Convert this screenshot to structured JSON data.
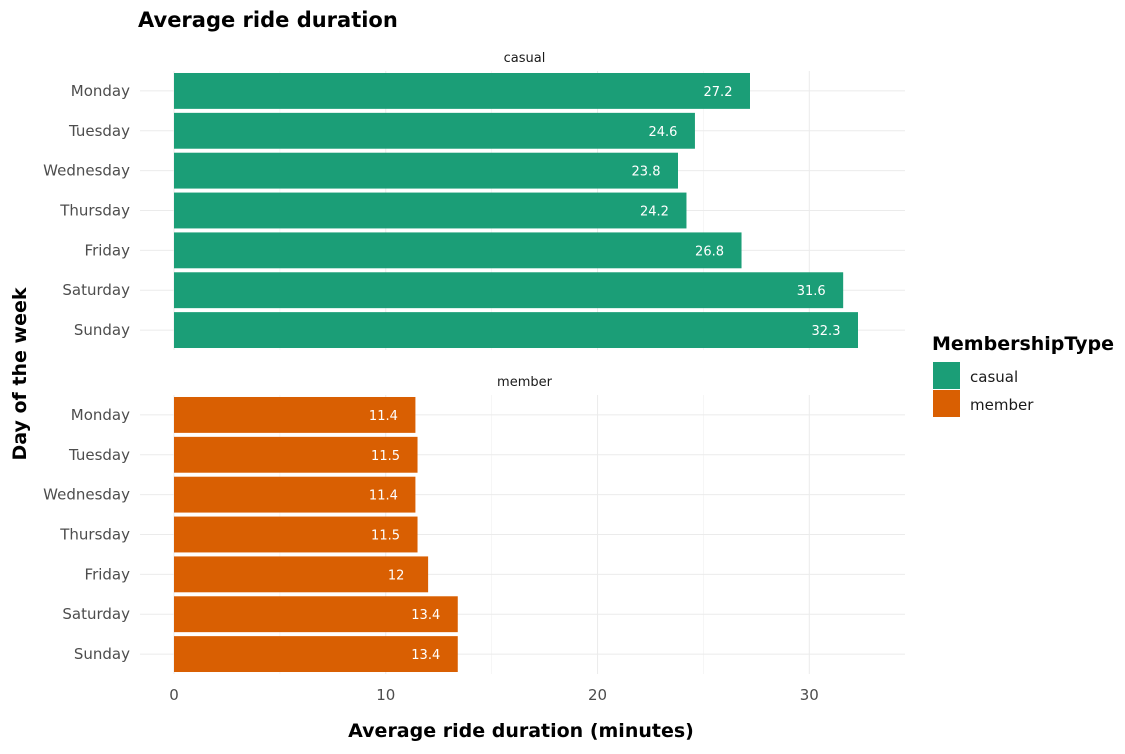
{
  "chart_data": {
    "type": "bar",
    "orientation": "horizontal",
    "title": "Average ride duration",
    "xlabel": "Average ride duration (minutes)",
    "ylabel": "Day of the week",
    "xlim": [
      0,
      34
    ],
    "xticks": [
      0,
      10,
      20,
      30
    ],
    "grid": true,
    "legend": {
      "title": "MembershipType",
      "placement": "right",
      "entries": [
        "casual",
        "member"
      ]
    },
    "categories": [
      "Monday",
      "Tuesday",
      "Wednesday",
      "Thursday",
      "Friday",
      "Saturday",
      "Sunday"
    ],
    "series": [
      {
        "name": "casual",
        "color": "#1b9e77",
        "values": [
          27.2,
          24.6,
          23.8,
          24.2,
          26.8,
          31.6,
          32.3
        ]
      },
      {
        "name": "member",
        "color": "#d95f02",
        "values": [
          11.4,
          11.5,
          11.4,
          11.5,
          12,
          13.4,
          13.4
        ]
      }
    ]
  }
}
